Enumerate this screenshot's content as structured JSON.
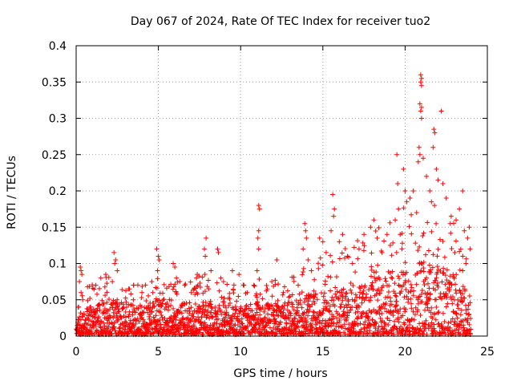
{
  "chart_data": {
    "type": "scatter",
    "title": "Day 067 of 2024, Rate Of TEC Index for receiver tuo2",
    "xlabel": "GPS time / hours",
    "ylabel": "ROTI / TECUs",
    "xlim": [
      0,
      25
    ],
    "ylim": [
      0,
      0.4
    ],
    "xticks": [
      0,
      5,
      10,
      15,
      20,
      25
    ],
    "xtick_labels": [
      "0",
      "5",
      "10",
      "15",
      "20",
      "25"
    ],
    "yticks": [
      0,
      0.05,
      0.1,
      0.15,
      0.2,
      0.25,
      0.3,
      0.35,
      0.4
    ],
    "ytick_labels": [
      "0",
      "0.05",
      "0.1",
      "0.15",
      "0.2",
      "0.25",
      "0.3",
      "0.35",
      "0.4"
    ],
    "grid": true,
    "marker": "plus",
    "color": "#ff0000",
    "series": [
      {
        "name": "ROTI",
        "points": [
          [
            0.25,
            0.095
          ],
          [
            0.3,
            0.09
          ],
          [
            0.35,
            0.085
          ],
          [
            0.2,
            0.075
          ],
          [
            0.3,
            0.06
          ],
          [
            0.4,
            0.05
          ],
          [
            0.15,
            0.04
          ],
          [
            1.2,
            0.07
          ],
          [
            1.5,
            0.08
          ],
          [
            1.8,
            0.085
          ],
          [
            2.3,
            0.115
          ],
          [
            2.4,
            0.105
          ],
          [
            2.35,
            0.1
          ],
          [
            2.5,
            0.09
          ],
          [
            2.2,
            0.075
          ],
          [
            3.2,
            0.065
          ],
          [
            3.5,
            0.07
          ],
          [
            4.0,
            0.06
          ],
          [
            4.6,
            0.075
          ],
          [
            4.9,
            0.12
          ],
          [
            5.0,
            0.11
          ],
          [
            5.05,
            0.105
          ],
          [
            4.95,
            0.09
          ],
          [
            5.9,
            0.1
          ],
          [
            6.0,
            0.095
          ],
          [
            6.1,
            0.08
          ],
          [
            6.3,
            0.075
          ],
          [
            6.6,
            0.07
          ],
          [
            7.0,
            0.06
          ],
          [
            7.4,
            0.07
          ],
          [
            7.9,
            0.135
          ],
          [
            7.8,
            0.12
          ],
          [
            7.85,
            0.11
          ],
          [
            8.6,
            0.12
          ],
          [
            8.65,
            0.115
          ],
          [
            8.2,
            0.09
          ],
          [
            8.8,
            0.08
          ],
          [
            9.5,
            0.09
          ],
          [
            9.9,
            0.085
          ],
          [
            10.2,
            0.07
          ],
          [
            10.4,
            0.06
          ],
          [
            10.8,
            0.07
          ],
          [
            11.1,
            0.18
          ],
          [
            11.15,
            0.175
          ],
          [
            11.1,
            0.145
          ],
          [
            11.05,
            0.135
          ],
          [
            11.1,
            0.12
          ],
          [
            11.0,
            0.09
          ],
          [
            11.9,
            0.075
          ],
          [
            12.2,
            0.105
          ],
          [
            12.6,
            0.06
          ],
          [
            13.0,
            0.055
          ],
          [
            13.5,
            0.07
          ],
          [
            13.9,
            0.155
          ],
          [
            13.95,
            0.145
          ],
          [
            14.0,
            0.135
          ],
          [
            13.8,
            0.12
          ],
          [
            14.1,
            0.105
          ],
          [
            14.3,
            0.09
          ],
          [
            14.8,
            0.135
          ],
          [
            15.0,
            0.13
          ],
          [
            15.2,
            0.115
          ],
          [
            15.6,
            0.195
          ],
          [
            15.7,
            0.175
          ],
          [
            15.65,
            0.165
          ],
          [
            15.5,
            0.145
          ],
          [
            16.0,
            0.13
          ],
          [
            16.2,
            0.14
          ],
          [
            16.5,
            0.11
          ],
          [
            16.8,
            0.1
          ],
          [
            17.2,
            0.12
          ],
          [
            17.5,
            0.14
          ],
          [
            17.9,
            0.15
          ],
          [
            18.1,
            0.16
          ],
          [
            18.3,
            0.135
          ],
          [
            18.6,
            0.115
          ],
          [
            18.9,
            0.14
          ],
          [
            19.1,
            0.125
          ],
          [
            19.5,
            0.25
          ],
          [
            19.55,
            0.21
          ],
          [
            19.6,
            0.175
          ],
          [
            19.4,
            0.16
          ],
          [
            19.7,
            0.14
          ],
          [
            19.9,
            0.23
          ],
          [
            20.0,
            0.2
          ],
          [
            20.1,
            0.185
          ],
          [
            20.3,
            0.19
          ],
          [
            20.5,
            0.2
          ],
          [
            20.7,
            0.17
          ],
          [
            20.8,
            0.24
          ],
          [
            20.95,
            0.36
          ],
          [
            21.0,
            0.355
          ],
          [
            20.95,
            0.35
          ],
          [
            21.0,
            0.345
          ],
          [
            20.9,
            0.32
          ],
          [
            21.0,
            0.315
          ],
          [
            20.95,
            0.31
          ],
          [
            21.0,
            0.3
          ],
          [
            20.85,
            0.26
          ],
          [
            20.9,
            0.25
          ],
          [
            21.1,
            0.245
          ],
          [
            21.3,
            0.22
          ],
          [
            21.5,
            0.2
          ],
          [
            21.6,
            0.185
          ],
          [
            21.75,
            0.285
          ],
          [
            21.8,
            0.28
          ],
          [
            21.7,
            0.26
          ],
          [
            21.9,
            0.23
          ],
          [
            22.0,
            0.215
          ],
          [
            22.2,
            0.31
          ],
          [
            22.3,
            0.21
          ],
          [
            22.5,
            0.19
          ],
          [
            22.8,
            0.165
          ],
          [
            23.1,
            0.16
          ],
          [
            23.3,
            0.175
          ],
          [
            23.5,
            0.2
          ],
          [
            23.6,
            0.145
          ],
          [
            23.8,
            0.135
          ],
          [
            23.9,
            0.15
          ],
          [
            23.95,
            0.12
          ],
          [
            23.7,
            0.1
          ],
          [
            23.5,
            0.09
          ]
        ],
        "band_envelope": [
          [
            0,
            0.03
          ],
          [
            1,
            0.04
          ],
          [
            2,
            0.045
          ],
          [
            3,
            0.045
          ],
          [
            4,
            0.04
          ],
          [
            5,
            0.045
          ],
          [
            6,
            0.04
          ],
          [
            7,
            0.045
          ],
          [
            8,
            0.045
          ],
          [
            9,
            0.04
          ],
          [
            10,
            0.04
          ],
          [
            11,
            0.045
          ],
          [
            12,
            0.04
          ],
          [
            13,
            0.045
          ],
          [
            14,
            0.05
          ],
          [
            15,
            0.06
          ],
          [
            16,
            0.065
          ],
          [
            17,
            0.07
          ],
          [
            18,
            0.075
          ],
          [
            19,
            0.085
          ],
          [
            20,
            0.095
          ],
          [
            21,
            0.1
          ],
          [
            22,
            0.095
          ],
          [
            23,
            0.085
          ],
          [
            24,
            0.07
          ]
        ]
      }
    ]
  }
}
